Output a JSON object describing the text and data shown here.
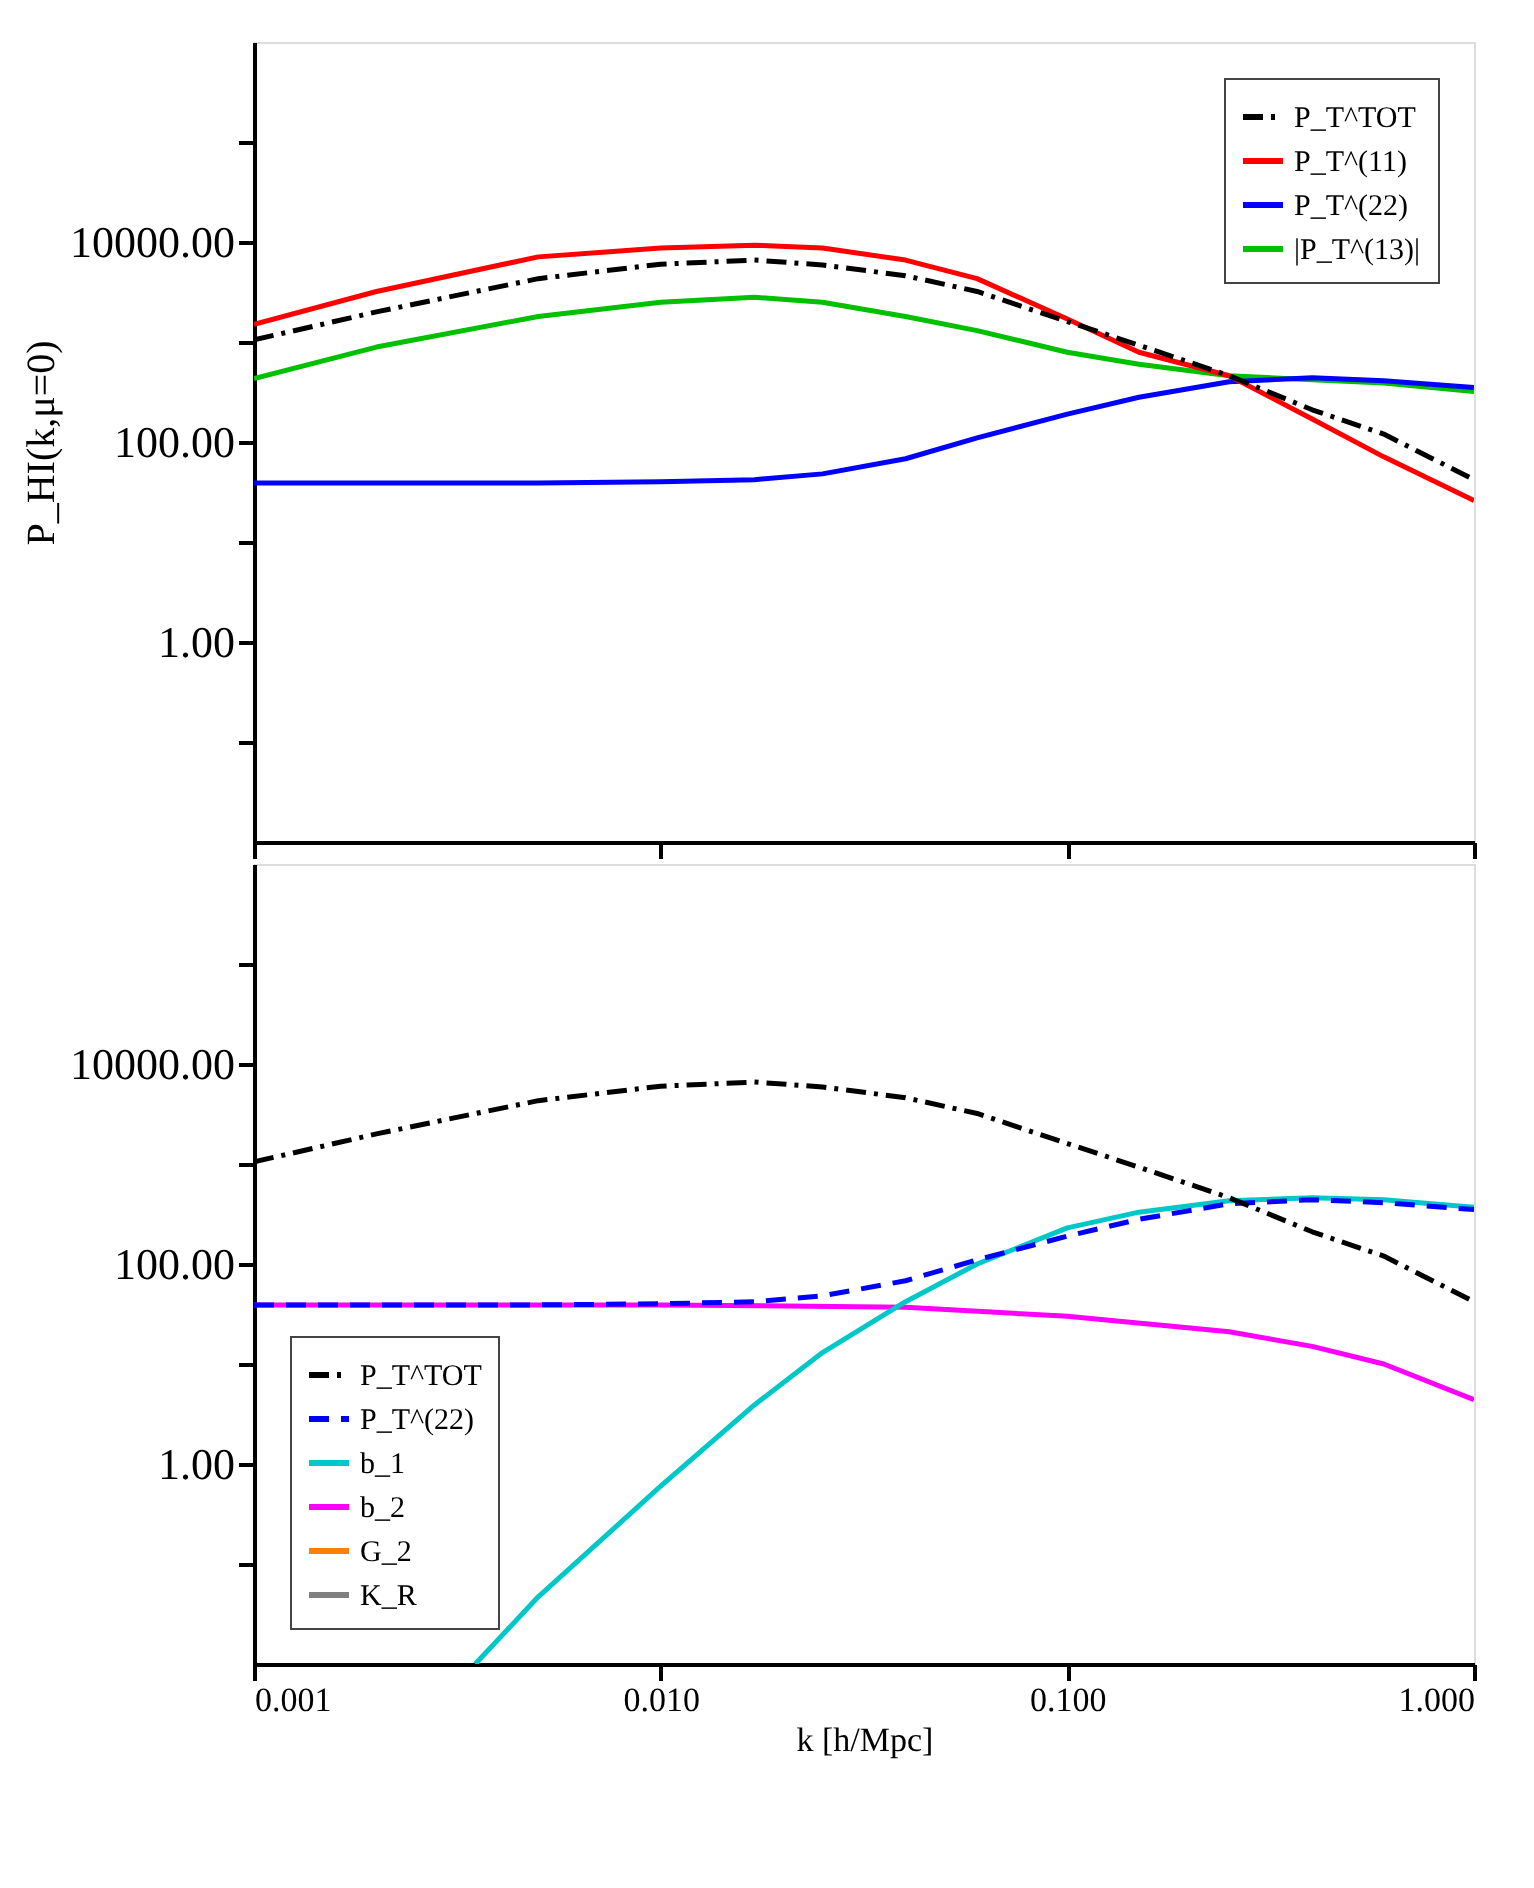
{
  "chart_data": [
    {
      "type": "line",
      "ylabel": "P_HI(k,μ=0)",
      "log": "xy",
      "grid": false,
      "legend": "top right",
      "tick_labels": "y",
      "xlim": [
        0.001,
        1.0
      ],
      "ylim": [
        0.01,
        1000000
      ],
      "xticks": [
        {
          "value": 0.001,
          "label": null
        },
        {
          "value": 0.01,
          "label": null
        },
        {
          "value": 0.1,
          "label": null
        },
        {
          "value": 1.0,
          "label": null
        }
      ],
      "yticks": [
        {
          "value": 0.1,
          "label": null
        },
        {
          "value": 1,
          "label": "1.00"
        },
        {
          "value": 10,
          "label": null
        },
        {
          "value": 100,
          "label": "100.00"
        },
        {
          "value": 1000,
          "label": null
        },
        {
          "value": 10000,
          "label": "10000.00"
        },
        {
          "value": 100000,
          "label": null
        }
      ],
      "x": [
        0.001,
        0.002,
        0.005,
        0.01,
        0.017,
        0.025,
        0.04,
        0.06,
        0.1,
        0.15,
        0.25,
        0.4,
        0.6,
        1.0
      ],
      "series": [
        {
          "name": "P_T^TOT",
          "color": "#000000",
          "line_style": "dashdot",
          "values": [
            1050,
            2000,
            4300,
            6000,
            6600,
            5900,
            4600,
            3200,
            1600,
            930,
            460,
            210,
            120,
            42
          ]
        },
        {
          "name": "P_T^(11)",
          "color": "#ff0000",
          "line_style": "solid",
          "values": [
            1500,
            3200,
            7100,
            8700,
            9300,
            8700,
            6600,
            4300,
            1700,
            790,
            460,
            170,
            71,
            26
          ]
        },
        {
          "name": "P_T^(22)",
          "color": "#0000ff",
          "line_style": "solid",
          "values": [
            39,
            39,
            39,
            40,
            42,
            48,
            68,
            110,
            190,
            280,
            400,
            440,
            410,
            350
          ]
        },
        {
          "name": "|P_T^(13)|",
          "color": "#00c000",
          "line_style": "solid",
          "values": [
            430,
            890,
            1800,
            2500,
            2800,
            2500,
            1800,
            1300,
            790,
            600,
            460,
            420,
            390,
            320
          ]
        }
      ]
    },
    {
      "type": "line",
      "xlabel": "k [h/Mpc]",
      "log": "xy",
      "grid": false,
      "legend": "bottom left",
      "xlim": [
        0.001,
        1.0
      ],
      "ylim": [
        0.01,
        1000000
      ],
      "xticks": [
        {
          "value": 0.001,
          "label": "0.001"
        },
        {
          "value": 0.01,
          "label": "0.010"
        },
        {
          "value": 0.1,
          "label": "0.100"
        },
        {
          "value": 1.0,
          "label": "1.000"
        }
      ],
      "yticks": [
        {
          "value": 0.1,
          "label": null
        },
        {
          "value": 1,
          "label": "1.00"
        },
        {
          "value": 10,
          "label": null
        },
        {
          "value": 100,
          "label": "100.00"
        },
        {
          "value": 1000,
          "label": null
        },
        {
          "value": 10000,
          "label": "10000.00"
        },
        {
          "value": 100000,
          "label": null
        }
      ],
      "x": [
        0.001,
        0.002,
        0.005,
        0.01,
        0.017,
        0.025,
        0.04,
        0.06,
        0.1,
        0.15,
        0.25,
        0.4,
        0.6,
        1.0
      ],
      "series": [
        {
          "name": "P_T^TOT",
          "color": "#000000",
          "line_style": "dashdot",
          "values": [
            1050,
            2000,
            4300,
            6000,
            6600,
            5900,
            4600,
            3200,
            1600,
            930,
            460,
            210,
            120,
            42
          ]
        },
        {
          "name": "P_T^(22)",
          "color": "#0000ff",
          "line_style": "dashed",
          "values": [
            39,
            39,
            39,
            40,
            42,
            48,
            68,
            110,
            190,
            280,
            400,
            440,
            410,
            350
          ]
        },
        {
          "name": "b_1",
          "color": "#00c8c8",
          "line_style": "solid",
          "x": [
            0.0035,
            0.005,
            0.01,
            0.017,
            0.025,
            0.04,
            0.06,
            0.1,
            0.15,
            0.25,
            0.4,
            0.6,
            1.0
          ],
          "values": [
            0.01,
            0.047,
            0.6,
            3.9,
            13,
            42,
            100,
            230,
            330,
            430,
            460,
            440,
            370
          ]
        },
        {
          "name": "b_2",
          "color": "#ff00ff",
          "line_style": "solid",
          "x": [
            0.001,
            0.01,
            0.04,
            0.1,
            0.25,
            0.4,
            0.6,
            1.0
          ],
          "values": [
            39,
            39,
            37,
            30,
            21,
            15,
            10,
            4.4
          ]
        },
        {
          "name": "G_2",
          "color": "#ff7f00",
          "line_style": "solid",
          "values": [
            null,
            null,
            null,
            null,
            null,
            null,
            null,
            null,
            null,
            null,
            null,
            null,
            null,
            null
          ]
        },
        {
          "name": "K_R",
          "color": "#808080",
          "line_style": "solid",
          "values": [
            null,
            null,
            null,
            null,
            null,
            null,
            null,
            null,
            null,
            null,
            null,
            null,
            null,
            null
          ]
        }
      ]
    }
  ]
}
